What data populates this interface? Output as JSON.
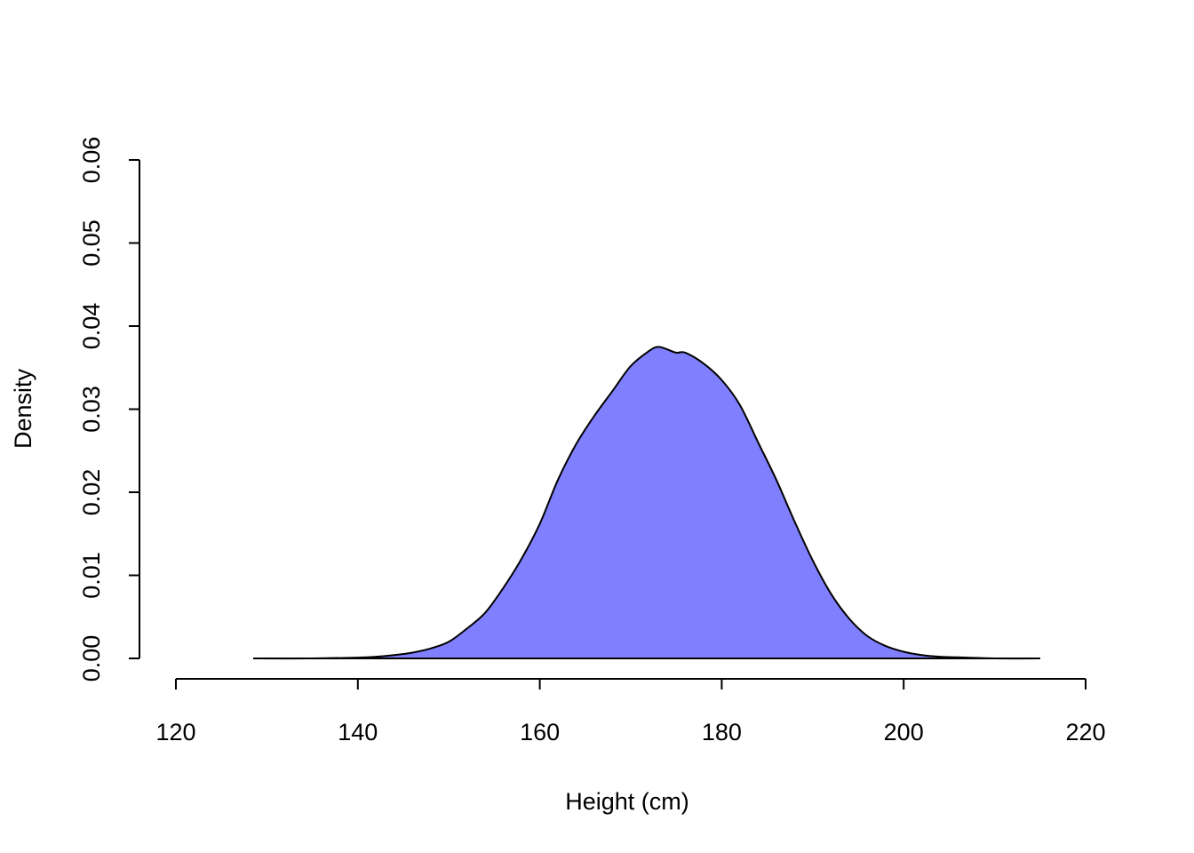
{
  "chart_data": {
    "type": "area",
    "title": "",
    "xlabel": "Height (cm)",
    "ylabel": "Density",
    "xlim": [
      120,
      220
    ],
    "ylim": [
      0,
      0.06
    ],
    "x_ticks": [
      "120",
      "140",
      "160",
      "180",
      "200",
      "220"
    ],
    "y_ticks": [
      "0.00",
      "0.01",
      "0.02",
      "0.03",
      "0.04",
      "0.05",
      "0.06"
    ],
    "grid": false,
    "fill_color": "#8080FF",
    "line_color": "#000000",
    "series": [
      {
        "x": [
          128.5,
          135,
          140,
          142,
          144,
          146,
          148,
          150,
          152,
          154,
          156,
          158,
          160,
          162,
          164,
          166,
          168,
          170,
          172,
          173,
          174,
          175,
          176,
          178,
          180,
          182,
          184,
          186,
          188,
          190,
          192,
          194,
          196,
          198,
          200,
          202,
          204,
          207,
          210,
          215
        ],
        "y": [
          0.0,
          0.0,
          0.0001,
          0.0002,
          0.0004,
          0.0007,
          0.0012,
          0.002,
          0.0036,
          0.0055,
          0.0085,
          0.012,
          0.0162,
          0.0215,
          0.0258,
          0.0292,
          0.0322,
          0.0352,
          0.037,
          0.0375,
          0.0372,
          0.0368,
          0.0368,
          0.0355,
          0.0335,
          0.0305,
          0.026,
          0.0215,
          0.0165,
          0.0118,
          0.0078,
          0.0048,
          0.0027,
          0.0015,
          0.0008,
          0.0004,
          0.0002,
          0.0001,
          0.0,
          0.0
        ]
      }
    ]
  }
}
